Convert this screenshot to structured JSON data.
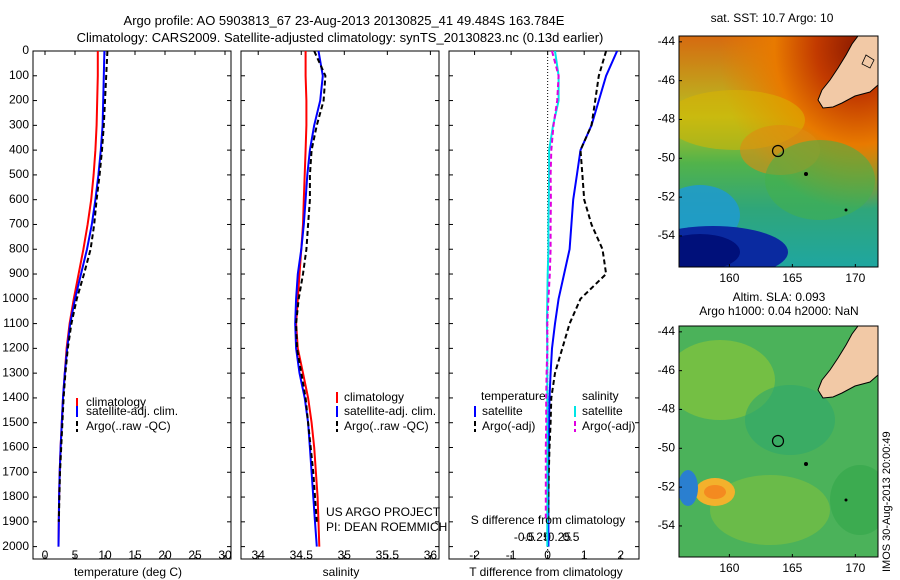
{
  "header": {
    "title_line1": "Argo profile: AO 5903813_67 23-Aug-2013 20130825_41 49.484S 163.784E",
    "title_line2": "Climatology: CARS2009. Satellite-adjusted climatology: synTS_20130823.nc (0.13d earlier)"
  },
  "depth_axis": {
    "ticks": [
      0,
      100,
      200,
      300,
      400,
      500,
      600,
      700,
      800,
      900,
      1000,
      1100,
      1200,
      1300,
      1400,
      1500,
      1600,
      1700,
      1800,
      1900,
      2000
    ],
    "ylim": [
      0,
      2050
    ]
  },
  "colors": {
    "climatology": "#ff0000",
    "satellite": "#0000ff",
    "argo": "#000000",
    "s_satellite": "#00e5e5",
    "s_argo": "#e000e0",
    "land": "#f2c9a6",
    "marker": "#000000"
  },
  "panels": {
    "temperature": {
      "xlabel": "temperature (deg C)",
      "xticks": [
        0,
        5,
        10,
        15,
        20,
        25,
        30
      ],
      "xlim": [
        -2,
        31
      ],
      "legend": [
        "climatology",
        "satellite-adj. clim.",
        "Argo(..raw -QC)"
      ]
    },
    "salinity": {
      "xlabel": "salinity",
      "xticks": [
        34,
        34.5,
        35,
        35.5,
        36
      ],
      "xlim": [
        33.8,
        36.1
      ],
      "legend": [
        "climatology",
        "satellite-adj. clim.",
        "Argo(..raw -QC)"
      ],
      "credit_line1": "US ARGO PROJECT",
      "credit_line2": "PI: DEAN ROEMMICH"
    },
    "difference": {
      "xlabel": "T difference from climatology",
      "xticks": [
        "-2",
        "-1",
        "0",
        "1",
        "2"
      ],
      "xtick_values": [
        -2,
        -1,
        0,
        1,
        2
      ],
      "xlim": [
        -2.7,
        2.5
      ],
      "s_label": "S difference from climatology",
      "s_ticks": [
        "-0.5",
        "-0.25",
        "0",
        "0.25",
        "0.5"
      ],
      "s_tick_values": [
        -0.5,
        -0.25,
        0,
        0.25,
        0.5
      ],
      "legend_t_title": "temperature",
      "legend_t": [
        "satellite",
        "Argo(-adj)"
      ],
      "legend_s_title": "salinity",
      "legend_s": [
        "satellite",
        "Argo(-adj)"
      ]
    }
  },
  "chart_data": [
    {
      "type": "line",
      "title": "",
      "xlabel": "temperature (deg C)",
      "ylabel": "",
      "xlim": [
        -2,
        31
      ],
      "ylim": [
        2050,
        0
      ],
      "series": [
        {
          "name": "climatology",
          "x": [
            8.8,
            8.8,
            8.7,
            8.6,
            8.4,
            8.1,
            7.7,
            7.1,
            6.4,
            5.6,
            4.8,
            4.1,
            3.6,
            3.3,
            3.0,
            2.8,
            2.6,
            2.45,
            2.35,
            2.3,
            2.25
          ],
          "y": [
            0,
            100,
            200,
            300,
            400,
            500,
            600,
            700,
            800,
            900,
            1000,
            1100,
            1200,
            1300,
            1400,
            1500,
            1600,
            1700,
            1800,
            1900,
            2000
          ]
        },
        {
          "name": "satellite-adj. clim.",
          "x": [
            9.9,
            9.8,
            9.7,
            9.6,
            9.3,
            8.9,
            8.4,
            7.8,
            7.0,
            6.0,
            5.0,
            4.2,
            3.7,
            3.3,
            3.0,
            2.8,
            2.6,
            2.45,
            2.35,
            2.3,
            2.25
          ],
          "y": [
            0,
            100,
            200,
            300,
            400,
            500,
            600,
            700,
            800,
            900,
            1000,
            1100,
            1200,
            1300,
            1400,
            1500,
            1600,
            1700,
            1800,
            1900,
            2000
          ]
        },
        {
          "name": "Argo(..raw -QC)",
          "x": [
            10.4,
            10.2,
            10.0,
            9.8,
            9.5,
            9.1,
            8.6,
            8.2,
            7.6,
            6.5,
            5.3,
            4.4,
            3.8,
            3.4,
            3.1,
            2.9,
            2.7,
            2.5,
            2.4,
            2.3
          ],
          "y": [
            0,
            100,
            200,
            300,
            400,
            500,
            600,
            700,
            800,
            900,
            1000,
            1100,
            1200,
            1300,
            1400,
            1500,
            1600,
            1700,
            1800,
            1900
          ]
        }
      ]
    },
    {
      "type": "line",
      "title": "",
      "xlabel": "salinity",
      "ylabel": "",
      "xlim": [
        33.8,
        36.1
      ],
      "ylim": [
        2050,
        0
      ],
      "series": [
        {
          "name": "climatology",
          "x": [
            34.55,
            34.55,
            34.56,
            34.56,
            34.55,
            34.54,
            34.53,
            34.52,
            34.5,
            34.48,
            34.46,
            34.44,
            34.46,
            34.52,
            34.58,
            34.62,
            34.65,
            34.67,
            34.69,
            34.7,
            34.71
          ],
          "y": [
            0,
            100,
            200,
            300,
            400,
            500,
            600,
            700,
            800,
            900,
            1000,
            1100,
            1200,
            1300,
            1400,
            1500,
            1600,
            1700,
            1800,
            1900,
            2000
          ]
        },
        {
          "name": "satellite-adj. clim.",
          "x": [
            34.7,
            34.75,
            34.72,
            34.65,
            34.6,
            34.57,
            34.55,
            34.53,
            34.5,
            34.46,
            34.44,
            34.43,
            34.44,
            34.48,
            34.54,
            34.58,
            34.6,
            34.62,
            34.64,
            34.66,
            34.68
          ],
          "y": [
            0,
            100,
            200,
            300,
            400,
            500,
            600,
            700,
            800,
            900,
            1000,
            1100,
            1200,
            1300,
            1400,
            1500,
            1600,
            1700,
            1800,
            1900,
            2000
          ]
        },
        {
          "name": "Argo(..raw -QC)",
          "x": [
            34.65,
            34.78,
            34.76,
            34.68,
            34.62,
            34.6,
            34.6,
            34.58,
            34.56,
            34.52,
            34.47,
            34.44,
            34.45,
            34.5,
            34.55,
            34.58,
            34.61,
            34.64,
            34.66,
            34.68
          ],
          "y": [
            0,
            100,
            200,
            300,
            400,
            500,
            600,
            700,
            800,
            900,
            1000,
            1100,
            1200,
            1300,
            1400,
            1500,
            1600,
            1700,
            1800,
            1900
          ]
        }
      ]
    },
    {
      "type": "line",
      "title": "",
      "xlabel": "T difference from climatology",
      "ylabel": "",
      "xlim": [
        -2.7,
        2.5
      ],
      "ylim": [
        2050,
        0
      ],
      "series": [
        {
          "name": "temperature satellite",
          "x": [
            1.9,
            1.6,
            1.4,
            1.2,
            0.9,
            0.8,
            0.7,
            0.65,
            0.6,
            0.45,
            0.3,
            0.2,
            0.12,
            0.08,
            0.05,
            0.04,
            0.03,
            0.02,
            0.02,
            0.02,
            0.02
          ],
          "y": [
            0,
            100,
            200,
            300,
            400,
            500,
            600,
            700,
            800,
            900,
            1000,
            1100,
            1200,
            1300,
            1400,
            1500,
            1600,
            1700,
            1800,
            1900,
            2000
          ]
        },
        {
          "name": "temperature Argo(-adj)",
          "x": [
            1.6,
            1.4,
            1.3,
            1.2,
            0.9,
            0.95,
            1.0,
            1.2,
            1.5,
            1.6,
            0.9,
            0.6,
            0.4,
            0.2,
            0.1,
            0.08,
            0.05,
            0.03,
            0.02,
            0.02
          ],
          "y": [
            0,
            100,
            200,
            300,
            400,
            500,
            600,
            700,
            800,
            900,
            1000,
            1100,
            1200,
            1300,
            1400,
            1500,
            1600,
            1700,
            1800,
            1900
          ]
        },
        {
          "name": "salinity satellite",
          "x": [
            0.2,
            0.3,
            0.3,
            0.15,
            0.04,
            0.04,
            0.03,
            0.02,
            0.02,
            0.0,
            -0.01,
            -0.02,
            -0.01,
            -0.01,
            -0.01,
            -0.01,
            -0.01,
            -0.01,
            -0.01,
            -0.01,
            -0.01
          ],
          "y": [
            0,
            100,
            200,
            300,
            400,
            500,
            600,
            700,
            800,
            900,
            1000,
            1100,
            1200,
            1300,
            1400,
            1500,
            1600,
            1700,
            1800,
            1900,
            2000
          ]
        },
        {
          "name": "salinity Argo(-adj)",
          "x": [
            0.12,
            0.3,
            0.26,
            0.16,
            0.1,
            0.08,
            0.09,
            0.08,
            0.08,
            0.06,
            0.02,
            -0.01,
            -0.01,
            -0.03,
            -0.04,
            -0.04,
            -0.05,
            -0.05,
            -0.05,
            -0.05
          ],
          "y": [
            0,
            100,
            200,
            300,
            400,
            500,
            600,
            700,
            800,
            900,
            1000,
            1100,
            1200,
            1300,
            1400,
            1500,
            1600,
            1700,
            1800,
            1900
          ]
        }
      ]
    }
  ],
  "maps": {
    "sst": {
      "title": "sat. SST: 10.7 Argo: 10",
      "xticks": [
        "160",
        "165",
        "170"
      ],
      "yticks": [
        "-44",
        "-46",
        "-48",
        "-50",
        "-52",
        "-54"
      ]
    },
    "sla": {
      "title_line1": "Altim. SLA: 0.093",
      "title_line2": "Argo h1000: 0.04 h2000: NaN",
      "xticks": [
        "160",
        "165",
        "170"
      ],
      "yticks": [
        "-44",
        "-46",
        "-48",
        "-50",
        "-52",
        "-54"
      ]
    }
  },
  "footer": {
    "timestamp": "IMOS 30-Aug-2013 20:00:49"
  }
}
